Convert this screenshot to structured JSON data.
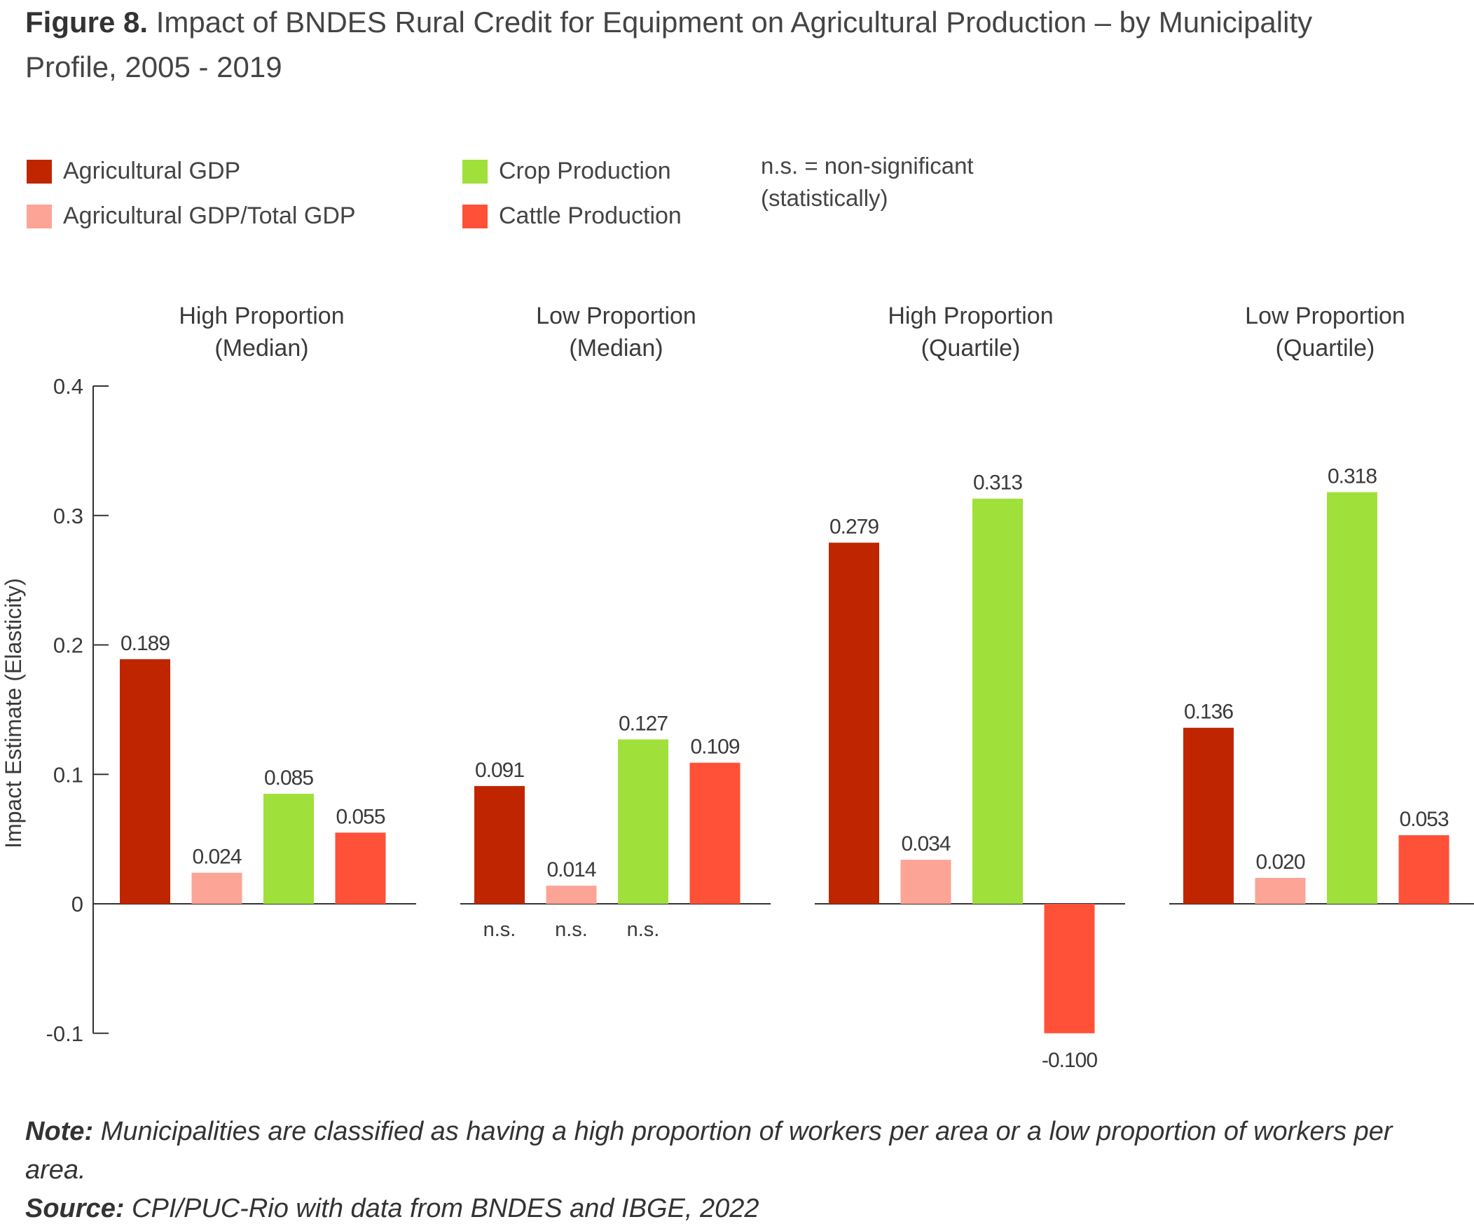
{
  "title": {
    "prefix": "Figure 8.",
    "text": "Impact of BNDES Rural Credit for Equipment on Agricultural Production – by Municipality Profile, 2005 - 2019"
  },
  "legend": {
    "items": [
      {
        "label": "Agricultural GDP",
        "color": "#BF2600"
      },
      {
        "label": "Agricultural GDP/Total GDP",
        "color": "#FCA496"
      },
      {
        "label": "Crop Production",
        "color": "#A0E03A"
      },
      {
        "label": "Cattle Production",
        "color": "#FF5138"
      }
    ],
    "ns_note": "n.s. = non-significant\n(statistically)"
  },
  "chart_data": {
    "type": "bar",
    "ylabel": "Impact Estimate (Elasticity)",
    "ylim": [
      -0.1,
      0.4
    ],
    "yticks": [
      "0.4",
      "0.3",
      "0.2",
      "0.1",
      "0",
      "-0.1"
    ],
    "series": [
      {
        "name": "Agricultural GDP",
        "color": "#BF2600"
      },
      {
        "name": "Agricultural GDP/Total GDP",
        "color": "#FCA496"
      },
      {
        "name": "Crop Production",
        "color": "#A0E03A"
      },
      {
        "name": "Cattle Production",
        "color": "#FF5138"
      }
    ],
    "panels": [
      {
        "title": [
          "High Proportion",
          "(Median)"
        ],
        "values": [
          0.189,
          0.024,
          0.085,
          0.055
        ],
        "labels": [
          "0.189",
          "0.024",
          "0.085",
          "0.055"
        ],
        "notes": [
          "",
          "",
          "",
          ""
        ]
      },
      {
        "title": [
          "Low Proportion",
          "(Median)"
        ],
        "values": [
          0.091,
          0.014,
          0.127,
          0.109
        ],
        "labels": [
          "0.091",
          "0.014",
          "0.127",
          "0.109"
        ],
        "notes": [
          "n.s.",
          "n.s.",
          "n.s.",
          ""
        ]
      },
      {
        "title": [
          "High Proportion",
          "(Quartile)"
        ],
        "values": [
          0.279,
          0.034,
          0.313,
          -0.1
        ],
        "labels": [
          "0.279",
          "0.034",
          "0.313",
          "-0.100"
        ],
        "notes": [
          "",
          "",
          "",
          ""
        ]
      },
      {
        "title": [
          "Low Proportion",
          "(Quartile)"
        ],
        "values": [
          0.136,
          0.02,
          0.318,
          0.053
        ],
        "labels": [
          "0.136",
          "0.020",
          "0.318",
          "0.053"
        ],
        "notes": [
          "",
          "",
          "",
          ""
        ]
      }
    ]
  },
  "footer": {
    "note_label": "Note:",
    "note_text": "Municipalities are classified as having a high proportion of workers per area or a low proportion of workers per area.",
    "source_label": "Source:",
    "source_text": "CPI/PUC-Rio with data from BNDES and IBGE, 2022"
  }
}
